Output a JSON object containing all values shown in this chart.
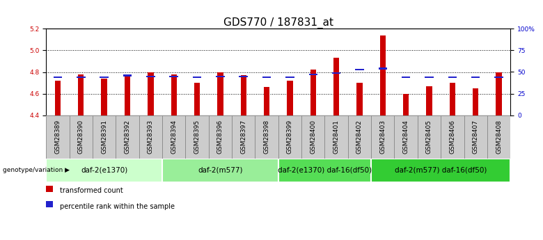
{
  "title": "GDS770 / 187831_at",
  "samples": [
    "GSM28389",
    "GSM28390",
    "GSM28391",
    "GSM28392",
    "GSM28393",
    "GSM28394",
    "GSM28395",
    "GSM28396",
    "GSM28397",
    "GSM28398",
    "GSM28399",
    "GSM28400",
    "GSM28401",
    "GSM28402",
    "GSM28403",
    "GSM28404",
    "GSM28405",
    "GSM28406",
    "GSM28407",
    "GSM28408"
  ],
  "transformed_count": [
    4.72,
    4.78,
    4.74,
    4.78,
    4.8,
    4.78,
    4.7,
    4.8,
    4.77,
    4.66,
    4.72,
    4.82,
    4.93,
    4.7,
    5.14,
    4.6,
    4.67,
    4.7,
    4.65,
    4.8
  ],
  "percentile_rank_pct": [
    44,
    44,
    44,
    46,
    45,
    45,
    44,
    45,
    45,
    44,
    44,
    47,
    49,
    53,
    54,
    44,
    44,
    44,
    44,
    44
  ],
  "ylim_left": [
    4.4,
    5.2
  ],
  "ylim_right": [
    0,
    100
  ],
  "yticks_left": [
    4.4,
    4.6,
    4.8,
    5.0,
    5.2
  ],
  "yticks_right": [
    0,
    25,
    50,
    75,
    100
  ],
  "ytick_labels_right": [
    "0",
    "25",
    "50",
    "75",
    "100%"
  ],
  "grid_values": [
    4.6,
    4.8,
    5.0
  ],
  "bar_color": "#cc0000",
  "percentile_color": "#2222cc",
  "bar_width": 0.25,
  "ybase": 4.4,
  "groups": [
    {
      "label": "daf-2(e1370)",
      "start": 0,
      "end": 5,
      "color": "#ccffcc"
    },
    {
      "label": "daf-2(m577)",
      "start": 5,
      "end": 10,
      "color": "#99ee99"
    },
    {
      "label": "daf-2(e1370) daf-16(df50)",
      "start": 10,
      "end": 14,
      "color": "#55dd55"
    },
    {
      "label": "daf-2(m577) daf-16(df50)",
      "start": 14,
      "end": 20,
      "color": "#33cc33"
    }
  ],
  "group_row_color": "#cccccc",
  "legend_items": [
    {
      "label": "transformed count",
      "color": "#cc0000"
    },
    {
      "label": "percentile rank within the sample",
      "color": "#2222cc"
    }
  ],
  "title_fontsize": 11,
  "tick_fontsize": 6.5,
  "group_fontsize": 7.5,
  "left_axis_color": "#cc0000",
  "right_axis_color": "#0000cc"
}
